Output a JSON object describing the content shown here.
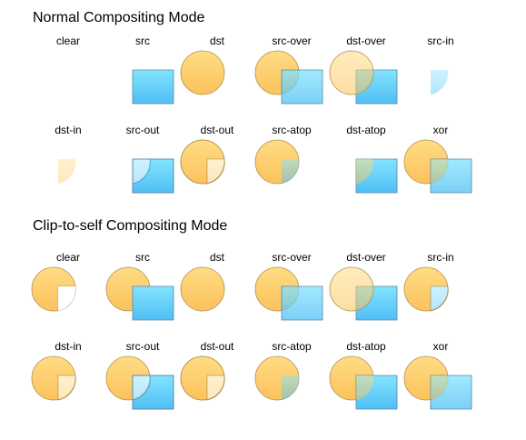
{
  "colors": {
    "circle_top": "#ffdc84",
    "circle_bottom": "#fcc25c",
    "circle_stroke": "#b09150",
    "square_top": "#83e4ff",
    "square_bottom": "#50bff4",
    "square_stroke": "#5a86a8",
    "background": "#ffffff"
  },
  "sections": [
    {
      "title": "Normal Compositing Mode",
      "key": "normal",
      "rows": [
        [
          "clear",
          "src",
          "dst",
          "src-over",
          "dst-over",
          "src-in"
        ],
        [
          "dst-in",
          "src-out",
          "dst-out",
          "src-atop",
          "dst-atop",
          "xor"
        ]
      ]
    },
    {
      "title": "Clip-to-self Compositing Mode",
      "key": "clip",
      "rows": [
        [
          "clear",
          "src",
          "dst",
          "src-over",
          "dst-over",
          "src-in"
        ],
        [
          "dst-in",
          "src-out",
          "dst-out",
          "src-atop",
          "dst-atop",
          "xor"
        ]
      ]
    }
  ]
}
